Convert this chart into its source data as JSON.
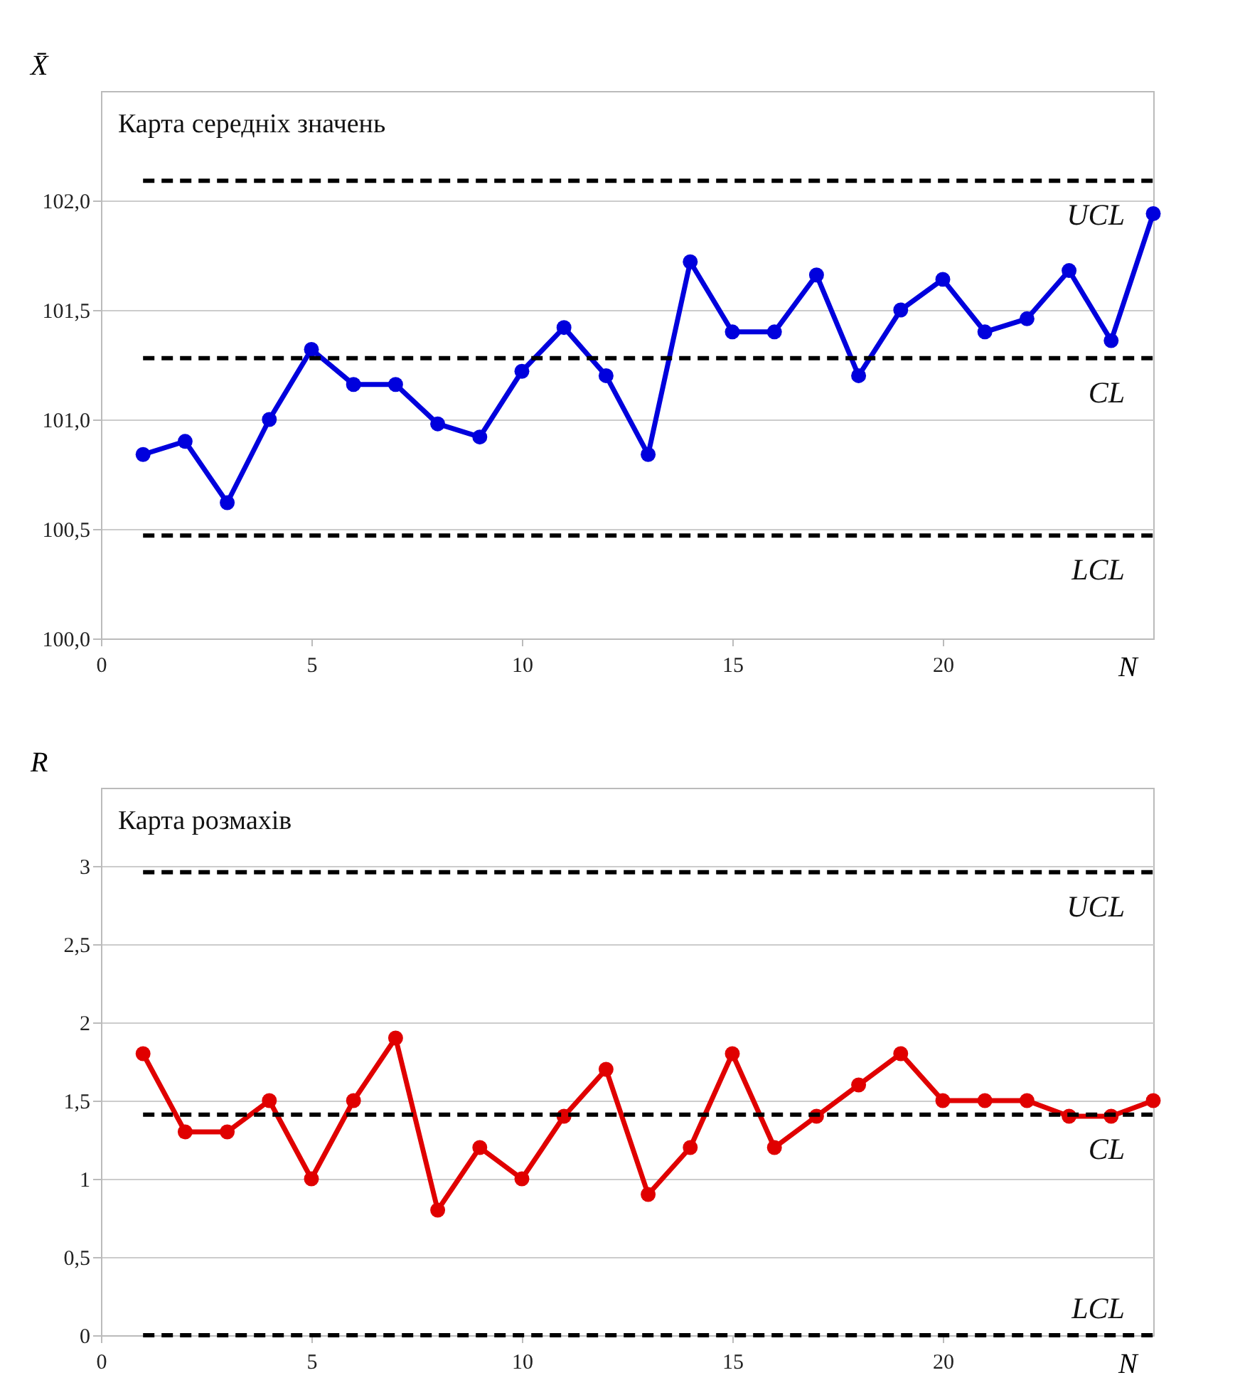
{
  "chart_data": [
    {
      "type": "line",
      "title": "Карта середніх значень",
      "xlabel": "N",
      "ylabel": "X̄",
      "marker": "circle",
      "line_style": "solid",
      "grid": "y",
      "x": [
        1,
        2,
        3,
        4,
        5,
        6,
        7,
        8,
        9,
        10,
        11,
        12,
        13,
        14,
        15,
        16,
        17,
        18,
        19,
        20,
        21,
        22,
        23,
        24,
        25
      ],
      "series": [
        {
          "color": "#0000dd",
          "values": [
            100.84,
            100.9,
            100.62,
            101.0,
            101.32,
            101.16,
            101.16,
            100.98,
            100.92,
            101.22,
            101.42,
            101.2,
            100.84,
            101.72,
            101.4,
            101.4,
            101.66,
            101.2,
            101.5,
            101.64,
            101.4,
            101.46,
            101.68,
            101.36,
            101.94
          ]
        }
      ],
      "xlim": [
        0,
        25
      ],
      "xticks": [
        0,
        5,
        10,
        15,
        20
      ],
      "ylim": [
        100.0,
        102.5
      ],
      "yticks": [
        {
          "value": 100.0,
          "label": "100,0"
        },
        {
          "value": 100.5,
          "label": "100,5"
        },
        {
          "value": 101.0,
          "label": "101,0"
        },
        {
          "value": 101.5,
          "label": "101,5"
        },
        {
          "value": 102.0,
          "label": "102,0"
        }
      ],
      "ref_lines": [
        {
          "axis": "y",
          "value": 102.09,
          "label": "UCL",
          "color": "#000000",
          "line_style": "dashed"
        },
        {
          "axis": "y",
          "value": 101.28,
          "label": "CL",
          "color": "#000000",
          "line_style": "dashed"
        },
        {
          "axis": "y",
          "value": 100.47,
          "label": "LCL",
          "color": "#000000",
          "line_style": "dashed"
        }
      ]
    },
    {
      "type": "line",
      "title": "Карта розмахів",
      "xlabel": "N",
      "ylabel": "R",
      "marker": "circle",
      "line_style": "solid",
      "grid": "y",
      "x": [
        1,
        2,
        3,
        4,
        5,
        6,
        7,
        8,
        9,
        10,
        11,
        12,
        13,
        14,
        15,
        16,
        17,
        18,
        19,
        20,
        21,
        22,
        23,
        24,
        25
      ],
      "series": [
        {
          "color": "#e00000",
          "values": [
            1.8,
            1.3,
            1.3,
            1.5,
            1.0,
            1.5,
            1.9,
            0.8,
            1.2,
            1.0,
            1.4,
            1.7,
            0.9,
            1.2,
            1.8,
            1.2,
            1.4,
            1.6,
            1.8,
            1.5,
            1.5,
            1.5,
            1.4,
            1.4,
            1.5
          ]
        }
      ],
      "xlim": [
        0,
        25
      ],
      "xticks": [
        0,
        5,
        10,
        15,
        20
      ],
      "ylim": [
        0,
        3.5
      ],
      "yticks": [
        0,
        {
          "value": 0.5,
          "label": "0,5"
        },
        1,
        {
          "value": 1.5,
          "label": "1,5"
        },
        2,
        {
          "value": 2.5,
          "label": "2,5"
        },
        3
      ],
      "ref_lines": [
        {
          "axis": "y",
          "value": 2.96,
          "label": "UCL",
          "color": "#000000",
          "line_style": "dashed"
        },
        {
          "axis": "y",
          "value": 1.41,
          "label": "CL",
          "color": "#000000",
          "line_style": "dashed"
        },
        {
          "axis": "y",
          "value": 0,
          "label": "LCL",
          "color": "#000000",
          "line_style": "dashed"
        }
      ]
    }
  ]
}
